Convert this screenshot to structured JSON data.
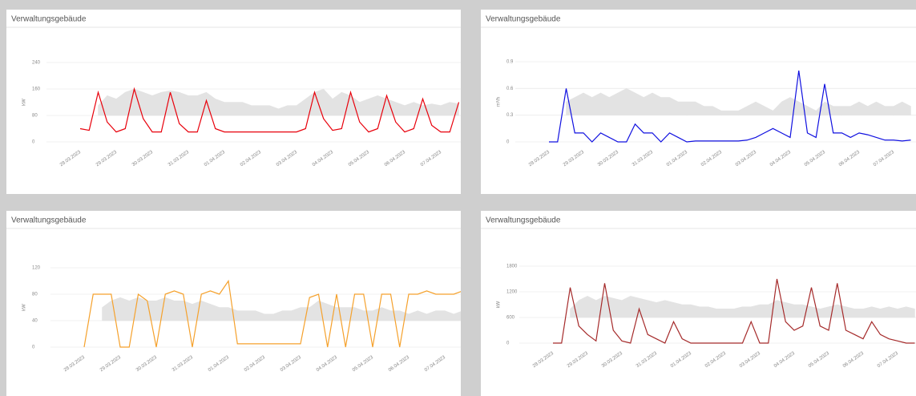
{
  "chart_data": [
    {
      "type": "line",
      "title": "Verwaltungsgebäude",
      "y_label": "kW",
      "categories": [
        "28.03.2023",
        null,
        null,
        null,
        "29.03.2023",
        null,
        null,
        null,
        "30.03.2023",
        null,
        null,
        null,
        "31.03.2023",
        null,
        null,
        null,
        "01.04.2023",
        null,
        null,
        null,
        "02.04.2023",
        null,
        null,
        null,
        "03.04.2023",
        null,
        null,
        null,
        "04.04.2023",
        null,
        null,
        null,
        "05.04.2023",
        null,
        null,
        null,
        "06.04.2023",
        null,
        null,
        null,
        "07.04.2023",
        null,
        null
      ],
      "series": [
        {
          "color": "#e8000b",
          "values": [
            40,
            35,
            150,
            60,
            30,
            40,
            160,
            70,
            30,
            30,
            150,
            55,
            30,
            30,
            125,
            40,
            30,
            30,
            30,
            30,
            30,
            30,
            30,
            30,
            30,
            40,
            150,
            70,
            35,
            40,
            150,
            60,
            30,
            40,
            140,
            60,
            30,
            40,
            130,
            50,
            30,
            30,
            120
          ]
        },
        {
          "type": "band",
          "color": "#e3e3e3",
          "values": [
            null,
            null,
            110,
            140,
            130,
            150,
            160,
            150,
            140,
            150,
            155,
            150,
            140,
            140,
            150,
            130,
            120,
            120,
            120,
            110,
            110,
            110,
            100,
            110,
            110,
            130,
            150,
            160,
            130,
            150,
            140,
            120,
            130,
            140,
            130,
            120,
            110,
            120,
            110,
            115,
            110,
            120,
            115
          ],
          "base": [
            null,
            null,
            80,
            80,
            80,
            80,
            80,
            80,
            80,
            80,
            80,
            80,
            80,
            80,
            80,
            80,
            80,
            80,
            80,
            80,
            80,
            80,
            80,
            80,
            80,
            80,
            80,
            80,
            80,
            80,
            80,
            80,
            80,
            80,
            80,
            80,
            80,
            80,
            80,
            80,
            80,
            80,
            80
          ]
        }
      ],
      "ylim": [
        0,
        240
      ],
      "yticks": [
        0,
        80,
        160,
        240
      ],
      "grid": true
    },
    {
      "type": "line",
      "title": "Verwaltungsgebäude",
      "y_label": "m³/h",
      "categories": [
        "28.03.2023",
        null,
        null,
        null,
        "29.03.2023",
        null,
        null,
        null,
        "30.03.2023",
        null,
        null,
        null,
        "31.03.2023",
        null,
        null,
        null,
        "01.04.2023",
        null,
        null,
        null,
        "02.04.2023",
        null,
        null,
        null,
        "03.04.2023",
        null,
        null,
        null,
        "04.04.2023",
        null,
        null,
        null,
        "05.04.2023",
        null,
        null,
        null,
        "06.04.2023",
        null,
        null,
        null,
        "07.04.2023",
        null,
        null
      ],
      "series": [
        {
          "color": "#1010e0",
          "values": [
            0,
            0,
            0.6,
            0.1,
            0.1,
            0,
            0.1,
            0.05,
            0,
            0,
            0.2,
            0.1,
            0.1,
            0,
            0.1,
            0.05,
            0,
            0.01,
            0.01,
            0.01,
            0.01,
            0.01,
            0.01,
            0.02,
            0.05,
            0.1,
            0.15,
            0.1,
            0.05,
            0.8,
            0.1,
            0.05,
            0.65,
            0.1,
            0.1,
            0.05,
            0.1,
            0.08,
            0.05,
            0.02,
            0.02,
            0.01,
            0.02
          ]
        },
        {
          "type": "band",
          "color": "#e3e3e3",
          "values": [
            null,
            null,
            0.45,
            0.5,
            0.55,
            0.5,
            0.55,
            0.5,
            0.55,
            0.6,
            0.55,
            0.5,
            0.55,
            0.5,
            0.5,
            0.45,
            0.45,
            0.45,
            0.4,
            0.4,
            0.35,
            0.35,
            0.35,
            0.4,
            0.45,
            0.4,
            0.35,
            0.45,
            0.5,
            0.45,
            0.4,
            0.35,
            0.45,
            0.4,
            0.4,
            0.4,
            0.45,
            0.4,
            0.45,
            0.4,
            0.4,
            0.45,
            0.4
          ],
          "base": [
            null,
            null,
            0.3,
            0.3,
            0.3,
            0.3,
            0.3,
            0.3,
            0.3,
            0.3,
            0.3,
            0.3,
            0.3,
            0.3,
            0.3,
            0.3,
            0.3,
            0.3,
            0.3,
            0.3,
            0.3,
            0.3,
            0.3,
            0.3,
            0.3,
            0.3,
            0.3,
            0.3,
            0.3,
            0.3,
            0.3,
            0.3,
            0.3,
            0.3,
            0.3,
            0.3,
            0.3,
            0.3,
            0.3,
            0.3,
            0.3,
            0.3,
            0.3
          ]
        }
      ],
      "ylim": [
        0,
        0.9
      ],
      "yticks": [
        0,
        0.3,
        0.6,
        0.9
      ],
      "grid": true
    },
    {
      "type": "line",
      "title": "Verwaltungsgebäude",
      "y_label": "kW",
      "categories": [
        "28.03.2023",
        null,
        null,
        null,
        "29.03.2023",
        null,
        null,
        null,
        "30.03.2023",
        null,
        null,
        null,
        "31.03.2023",
        null,
        null,
        null,
        "01.04.2023",
        null,
        null,
        null,
        "02.04.2023",
        null,
        null,
        null,
        "03.04.2023",
        null,
        null,
        null,
        "04.04.2023",
        null,
        null,
        null,
        "05.04.2023",
        null,
        null,
        null,
        "06.04.2023",
        null,
        null,
        null,
        "07.04.2023",
        null,
        null
      ],
      "series": [
        {
          "color": "#f5a12c",
          "values": [
            0,
            80,
            80,
            80,
            0,
            0,
            80,
            70,
            0,
            80,
            85,
            80,
            0,
            80,
            85,
            80,
            100,
            5,
            5,
            5,
            5,
            5,
            5,
            5,
            5,
            75,
            80,
            0,
            80,
            0,
            80,
            80,
            0,
            80,
            80,
            0,
            80,
            80,
            85,
            80,
            80,
            80,
            85
          ]
        },
        {
          "type": "band",
          "color": "#e3e3e3",
          "values": [
            null,
            null,
            60,
            70,
            75,
            70,
            75,
            70,
            70,
            75,
            70,
            70,
            65,
            70,
            65,
            60,
            60,
            55,
            55,
            55,
            50,
            50,
            55,
            55,
            60,
            60,
            70,
            65,
            60,
            60,
            60,
            55,
            55,
            60,
            55,
            55,
            50,
            55,
            50,
            55,
            55,
            50,
            55
          ],
          "base": [
            null,
            null,
            40,
            40,
            40,
            40,
            40,
            40,
            40,
            40,
            40,
            40,
            40,
            40,
            40,
            40,
            40,
            40,
            40,
            40,
            40,
            40,
            40,
            40,
            40,
            40,
            40,
            40,
            40,
            40,
            40,
            40,
            40,
            40,
            40,
            40,
            40,
            40,
            40,
            40,
            40,
            40,
            40
          ]
        }
      ],
      "ylim": [
        0,
        120
      ],
      "yticks": [
        0,
        40,
        80,
        120
      ],
      "grid": true
    },
    {
      "type": "line",
      "title": "Verwaltungsgebäude",
      "y_label": "kW",
      "categories": [
        "28.03.2023",
        null,
        null,
        null,
        "29.03.2023",
        null,
        null,
        null,
        "30.03.2023",
        null,
        null,
        null,
        "31.03.2023",
        null,
        null,
        null,
        "01.04.2023",
        null,
        null,
        null,
        "02.04.2023",
        null,
        null,
        null,
        "03.04.2023",
        null,
        null,
        null,
        "04.04.2023",
        null,
        null,
        null,
        "05.04.2023",
        null,
        null,
        null,
        "06.04.2023",
        null,
        null,
        null,
        "07.04.2023",
        null,
        null
      ],
      "series": [
        {
          "color": "#a52a2a",
          "values": [
            0,
            0,
            1300,
            400,
            200,
            50,
            1400,
            300,
            50,
            0,
            800,
            200,
            100,
            0,
            500,
            100,
            0,
            0,
            0,
            0,
            0,
            0,
            0,
            500,
            0,
            0,
            1500,
            500,
            300,
            400,
            1300,
            400,
            300,
            1400,
            300,
            200,
            100,
            500,
            200,
            100,
            50,
            0,
            0
          ]
        },
        {
          "type": "band",
          "color": "#e3e3e3",
          "values": [
            null,
            null,
            800,
            1000,
            1100,
            1000,
            1100,
            1050,
            1000,
            1100,
            1050,
            1000,
            950,
            1000,
            950,
            900,
            900,
            850,
            850,
            800,
            800,
            800,
            850,
            850,
            900,
            900,
            1000,
            950,
            900,
            900,
            850,
            800,
            850,
            900,
            850,
            800,
            800,
            850,
            800,
            850,
            800,
            850,
            800
          ],
          "base": [
            null,
            null,
            600,
            600,
            600,
            600,
            600,
            600,
            600,
            600,
            600,
            600,
            600,
            600,
            600,
            600,
            600,
            600,
            600,
            600,
            600,
            600,
            600,
            600,
            600,
            600,
            600,
            600,
            600,
            600,
            600,
            600,
            600,
            600,
            600,
            600,
            600,
            600,
            600,
            600,
            600,
            600,
            600
          ]
        }
      ],
      "ylim": [
        0,
        1800
      ],
      "yticks": [
        0,
        600,
        1200,
        1800
      ],
      "grid": true
    }
  ]
}
